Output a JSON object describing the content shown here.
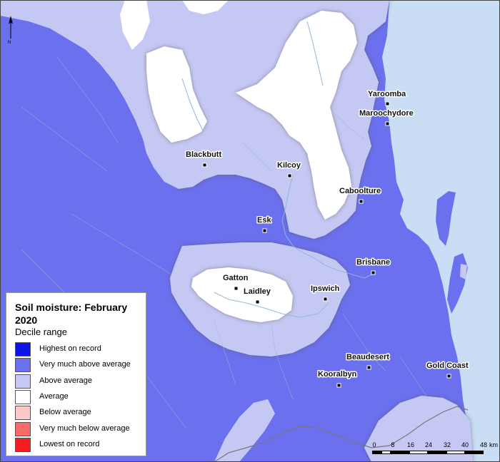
{
  "legend": {
    "title": "Soil moisture: February 2020",
    "subtitle": "Decile range",
    "items": [
      {
        "label": "Highest on record",
        "color": "#0a14e6"
      },
      {
        "label": "Very much above average",
        "color": "#6b70ee"
      },
      {
        "label": "Above average",
        "color": "#c6c8f4"
      },
      {
        "label": "Average",
        "color": "#ffffff"
      },
      {
        "label": "Below average",
        "color": "#fcc8c8"
      },
      {
        "label": "Very much below average",
        "color": "#fa6a6a"
      },
      {
        "label": "Lowest on record",
        "color": "#f81e1e"
      }
    ]
  },
  "towns": [
    {
      "name": "Yaroomba"
    },
    {
      "name": "Maroochydore"
    },
    {
      "name": "Blackbutt"
    },
    {
      "name": "Kilcoy"
    },
    {
      "name": "Caboolture"
    },
    {
      "name": "Esk"
    },
    {
      "name": "Brisbane"
    },
    {
      "name": "Gatton"
    },
    {
      "name": "Laidley"
    },
    {
      "name": "Ipswich"
    },
    {
      "name": "Beaudesert"
    },
    {
      "name": "Gold Coast"
    },
    {
      "name": "Kooralbyn"
    }
  ],
  "scale": {
    "ticks": [
      "0",
      "8",
      "16",
      "24",
      "32",
      "40",
      "48"
    ],
    "unit": "km"
  },
  "north_label": "N",
  "colors": {
    "ocean": "#c9def4",
    "very_much_above": "#6b70ee",
    "above": "#c6c8f4",
    "average": "#ffffff"
  }
}
